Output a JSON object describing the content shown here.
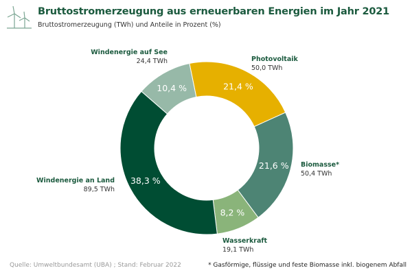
{
  "title": "Bruttostromerzeugung aus erneuerbaren Energien im Jahr 2021",
  "subtitle": "Bruttostromerzeugung (TWh) und Anteile in Prozent (%)",
  "logo_icon": "wind-turbines-icon",
  "chart_data": {
    "type": "pie",
    "variant": "donut",
    "start": "slightly left of top",
    "direction": "clockwise",
    "series": [
      {
        "name": "Photovoltaik",
        "value_label": "50,0 TWh",
        "value": 50.0,
        "percent": 21.4,
        "percent_label": "21,4 %",
        "color": "#e6b000",
        "text_color": "#ffffff"
      },
      {
        "name": "Biomasse*",
        "value_label": "50,4 TWh",
        "value": 50.4,
        "percent": 21.6,
        "percent_label": "21,6 %",
        "color": "#4d8474",
        "text_color": "#ffffff"
      },
      {
        "name": "Wasserkraft",
        "value_label": "19,1 TWh",
        "value": 19.1,
        "percent": 8.2,
        "percent_label": "8,2 %",
        "color": "#8ab47a",
        "text_color": "#ffffff"
      },
      {
        "name": "Windenergie an Land",
        "value_label": "89,5 TWh",
        "value": 89.5,
        "percent": 38.3,
        "percent_label": "38,3 %",
        "color": "#004d33",
        "text_color": "#ffffff"
      },
      {
        "name": "Windenergie auf See",
        "value_label": "24,4 TWh",
        "value": 24.4,
        "percent": 10.4,
        "percent_label": "10,4 %",
        "color": "#97b9a8",
        "text_color": "#ffffff"
      }
    ]
  },
  "footer": {
    "source": "Quelle: Umweltbundesamt (UBA) ; Stand: Februar 2022",
    "note": "* Gasförmige, flüssige und feste Biomasse inkl. biogenem Abfall"
  }
}
